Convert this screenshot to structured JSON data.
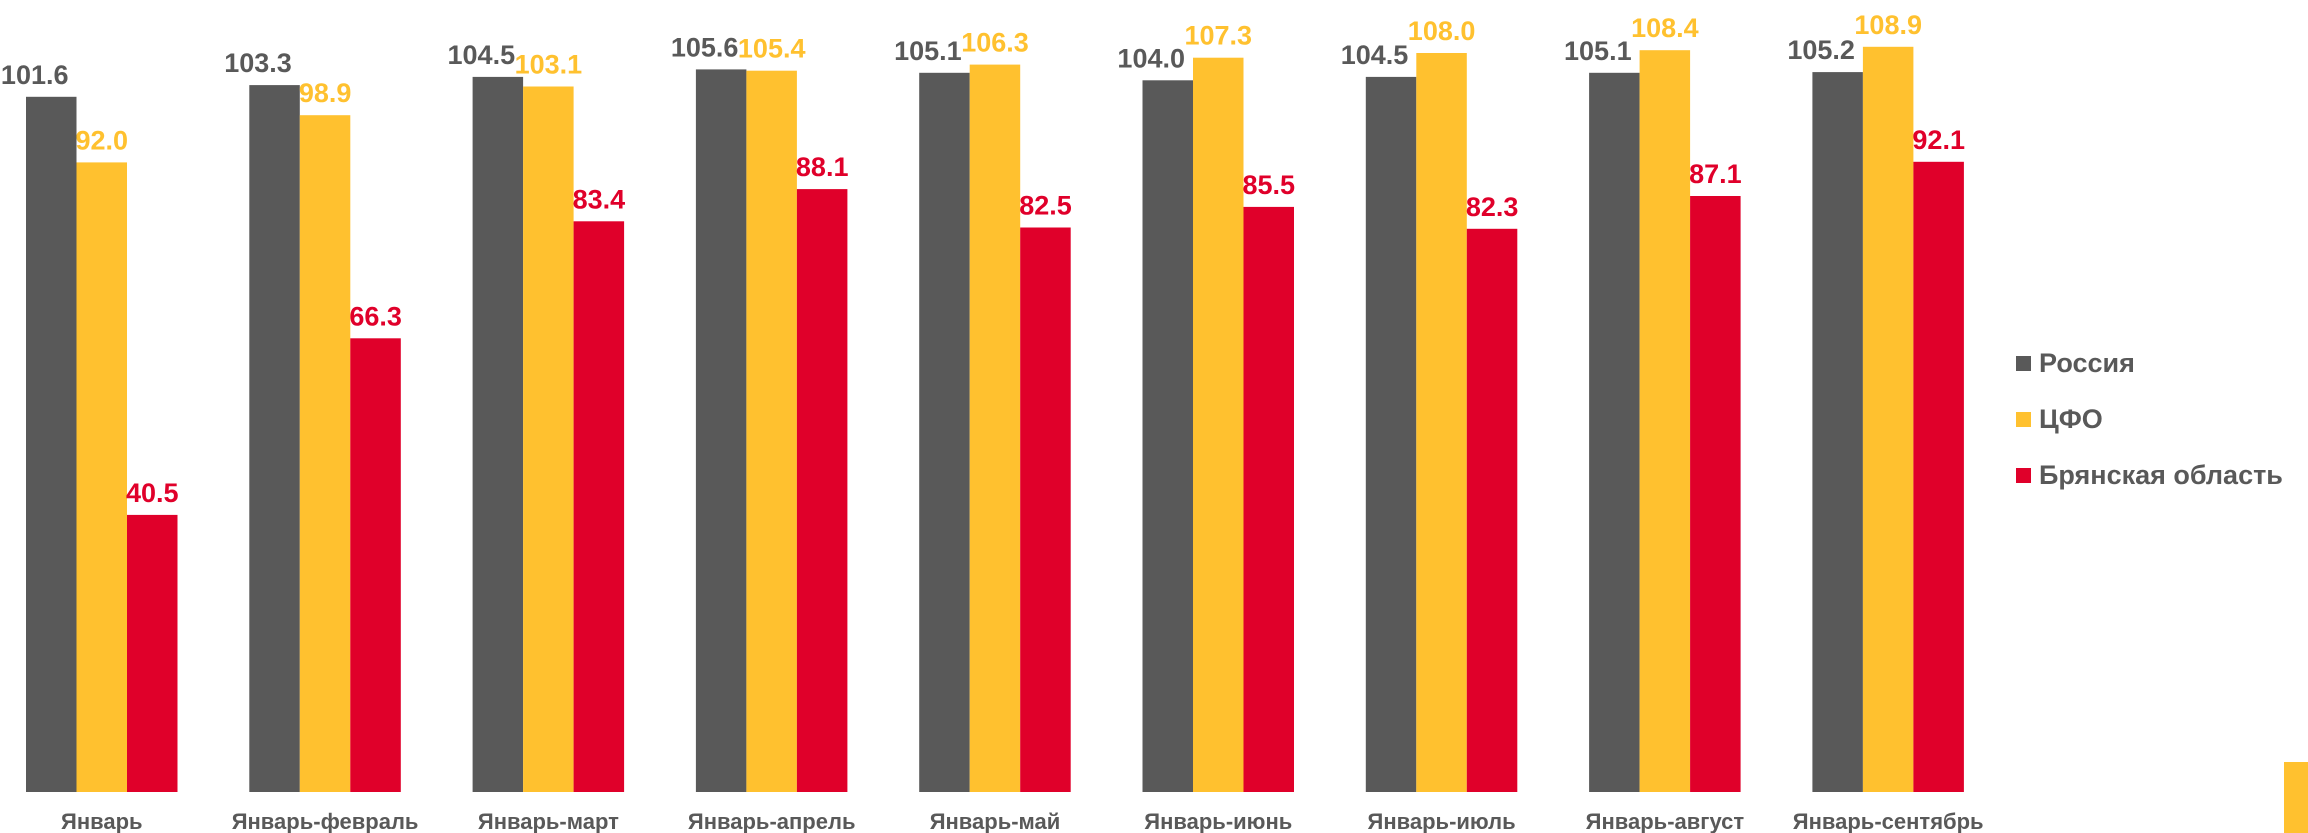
{
  "chart_data": {
    "type": "bar",
    "title": "",
    "xlabel": "",
    "ylabel": "",
    "ylim": [
      0,
      112
    ],
    "grid": false,
    "legend": "right",
    "categories": [
      "Январь",
      "Январь-февраль",
      "Январь-март",
      "Январь-апрель",
      "Январь-май",
      "Январь-июнь",
      "Январь-июль",
      "Январь-август",
      "Январь-сентябрь"
    ],
    "series": [
      {
        "name": "Россия",
        "color": "#595959",
        "values": [
          101.6,
          103.3,
          104.5,
          105.6,
          105.1,
          104.0,
          104.5,
          105.1,
          105.2
        ],
        "labels": [
          "101.6",
          "103.3",
          "104.5",
          "105.6",
          "105.1",
          "104.0",
          "104.5",
          "105.1",
          "105.2"
        ]
      },
      {
        "name": "ЦФО",
        "color": "#FFC12F",
        "values": [
          92.0,
          98.9,
          103.1,
          105.4,
          106.3,
          107.3,
          108.0,
          108.4,
          108.9
        ],
        "labels": [
          "92.0",
          "98.9",
          "103.1",
          "105.4",
          "106.3",
          "107.3",
          "108.0",
          "108.4",
          "108.9"
        ]
      },
      {
        "name": "Брянская область",
        "color": "#E0002A",
        "values": [
          40.5,
          66.3,
          83.4,
          88.1,
          82.5,
          85.5,
          82.3,
          87.1,
          92.1
        ],
        "labels": [
          "40.5",
          "66.3",
          "83.4",
          "88.1",
          "82.5",
          "85.5",
          "82.3",
          "87.1",
          "92.1"
        ]
      }
    ]
  },
  "accent_color": "#FFC12F"
}
